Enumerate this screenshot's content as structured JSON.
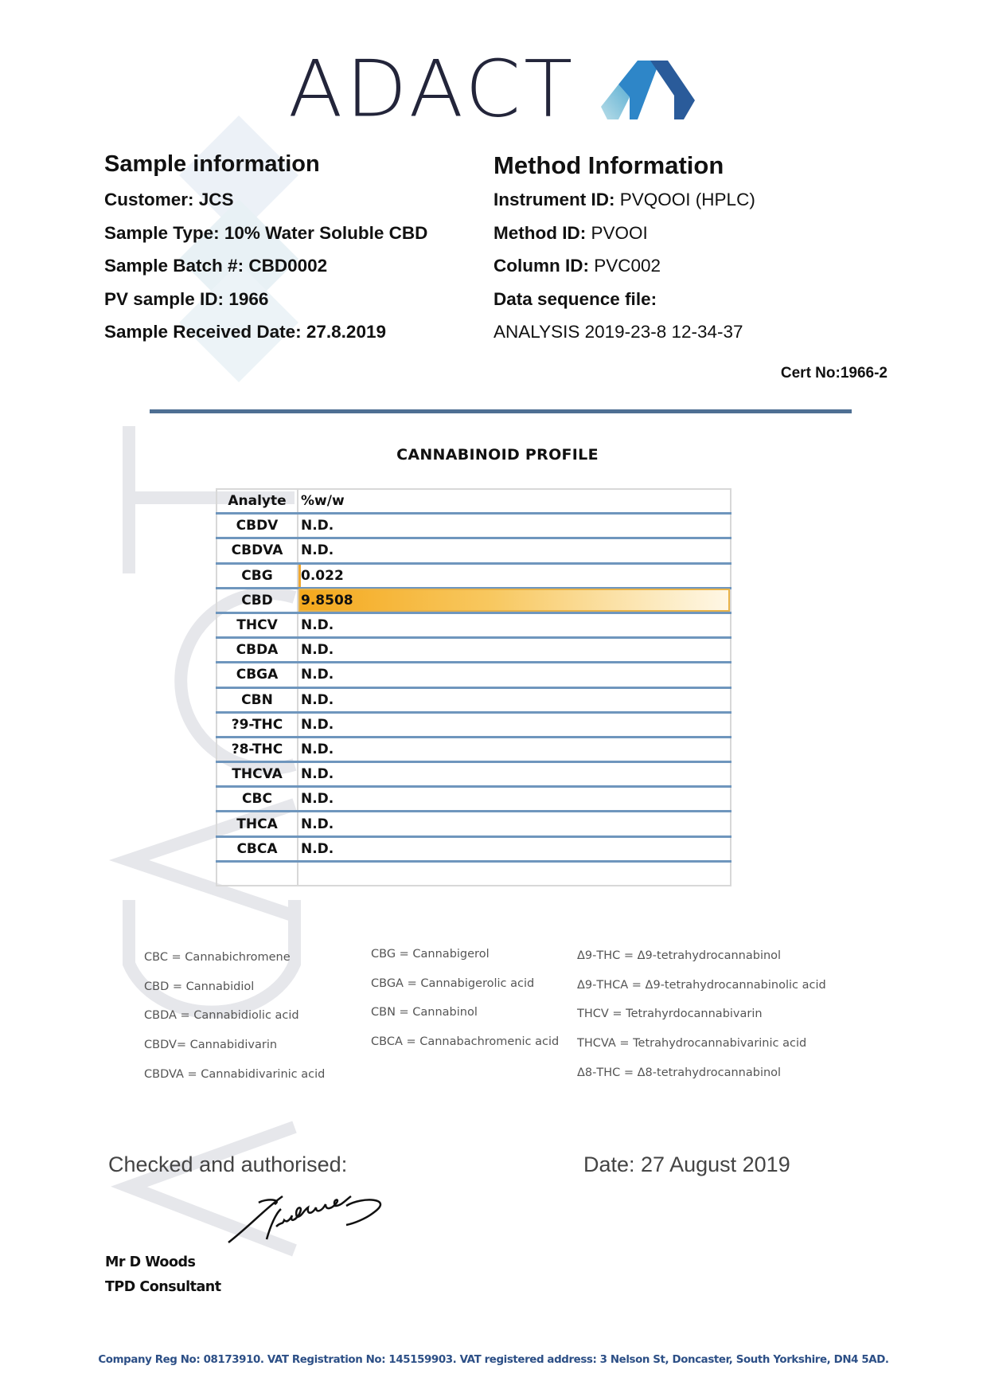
{
  "logo": {
    "text": "ADACT",
    "colors": [
      "#23253a",
      "#8fc7d8",
      "#2e86c8",
      "#2a5b9a"
    ]
  },
  "sample_info": {
    "heading": "Sample information",
    "items": [
      {
        "label": "Customer:",
        "value": "JCS"
      },
      {
        "label": "Sample Type:",
        "value": "10% Water Soluble CBD"
      },
      {
        "label": "Sample Batch #:",
        "value": "CBD0002"
      },
      {
        "label": "PV sample ID:",
        "value": "1966"
      },
      {
        "label": "Sample Received Date:",
        "value": "27.8.2019"
      }
    ]
  },
  "method_info": {
    "heading": "Method Information",
    "items": [
      {
        "label": "Instrument ID:",
        "value": "PVQOOI (HPLC)"
      },
      {
        "label": "Method ID:",
        "value": "PVOOI"
      },
      {
        "label": "Column ID:",
        "value": "PVC002"
      },
      {
        "label": "Data sequence file:",
        "value": ""
      }
    ],
    "sequence_file": "ANALYSIS 2019-23-8 12-34-37"
  },
  "cert_no": "Cert No:1966-2",
  "profile": {
    "title": "CANNABINOID  PROFILE",
    "headers": [
      "Analyte",
      "%w/w"
    ],
    "rows": [
      {
        "analyte": "CBDV",
        "value": "N.D."
      },
      {
        "analyte": "CBDVA",
        "value": "N.D."
      },
      {
        "analyte": "CBG",
        "value": "0.022"
      },
      {
        "analyte": "CBD",
        "value": "9.8508"
      },
      {
        "analyte": "THCV",
        "value": "N.D."
      },
      {
        "analyte": "CBDA",
        "value": "N.D."
      },
      {
        "analyte": "CBGA",
        "value": "N.D."
      },
      {
        "analyte": "CBN",
        "value": "N.D."
      },
      {
        "analyte": "?9-THC",
        "value": "N.D."
      },
      {
        "analyte": "?8-THC",
        "value": "N.D."
      },
      {
        "analyte": "THCVA",
        "value": "N.D."
      },
      {
        "analyte": "CBC",
        "value": "N.D."
      },
      {
        "analyte": "THCA",
        "value": "N.D."
      },
      {
        "analyte": "CBCA",
        "value": "N.D."
      }
    ],
    "highlight_color": "#f4a81c",
    "row_line_color": "#6f96bd"
  },
  "legend": {
    "col1": [
      "CBC = Cannabichromene",
      "CBD = Cannabidiol",
      "CBDA = Cannabidiolic acid",
      "CBDV= Cannabidivarin",
      "CBDVA = Cannabidivarinic acid"
    ],
    "col2": [
      "CBG = Cannabigerol",
      "CBGA = Cannabigerolic acid",
      "CBN = Cannabinol",
      "CBCA = Cannabachromenic acid"
    ],
    "col3": [
      "Δ9-THC = Δ9-tetrahydrocannabinol",
      "Δ9-THCA  = Δ9-tetrahydrocannabinolic acid",
      "THCV = Tetrahyrdocannabivarin",
      "THCVA  = Tetrahydrocannabivarinic acid",
      "Δ8-THC = Δ8-tetrahydrocannabinol"
    ]
  },
  "signoff": {
    "checked_label": "Checked and authorised:",
    "date": "Date: 27 August 2019",
    "name": "Mr D Woods",
    "role": "TPD Consultant"
  },
  "footer": "Company Reg No: 08173910. VAT Registration No: 145159903. VAT registered address: 3 Nelson St, Doncaster, South Yorkshire, DN4 5AD."
}
